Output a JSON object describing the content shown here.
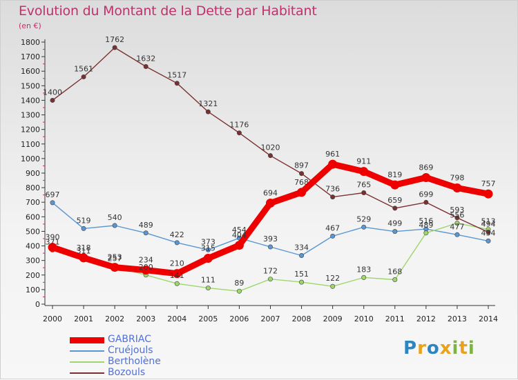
{
  "title": "Evolution du Montant de la Dette par Habitant",
  "unit": "(en €)",
  "logo": {
    "letters": [
      "P",
      "r",
      "o",
      "x",
      "i",
      "t",
      "i"
    ],
    "colors": [
      "#2e86c1",
      "#e8a31c",
      "#2e86c1",
      "#e8a31c",
      "#7cb342",
      "#e8a31c",
      "#7cb342"
    ]
  },
  "chart_data": {
    "type": "line",
    "title": "Evolution du Montant de la Dette par Habitant",
    "ylabel": "(en €)",
    "ylim": [
      0,
      1800
    ],
    "yticks": [
      0,
      100,
      200,
      300,
      400,
      500,
      600,
      700,
      800,
      900,
      1000,
      1100,
      1200,
      1300,
      1400,
      1500,
      1600,
      1700,
      1800
    ],
    "grid": false,
    "legend_position": "bottom-left",
    "x": [
      "2000",
      "2001",
      "2002",
      "2003",
      "2004",
      "2005",
      "2006",
      "2007",
      "2008",
      "2009",
      "2010",
      "2011",
      "2012",
      "2013",
      "2014"
    ],
    "series": [
      {
        "name": "GABRIAC",
        "color": "#ee0000",
        "thick": true,
        "values": [
          390,
          318,
          253,
          234,
          210,
          315,
          404,
          694,
          768,
          961,
          911,
          819,
          869,
          798,
          757
        ]
      },
      {
        "name": "Cruéjouls",
        "color": "#5a96d2",
        "thick": false,
        "values": [
          697,
          519,
          540,
          489,
          422,
          373,
          454,
          393,
          334,
          467,
          529,
          499,
          516,
          477,
          434
        ]
      },
      {
        "name": "Bertholène",
        "color": "#9dd66a",
        "thick": false,
        "values": [
          371,
          311,
          257,
          200,
          141,
          111,
          89,
          172,
          151,
          122,
          183,
          168,
          489,
          556,
          513
        ]
      },
      {
        "name": "Bozouls",
        "color": "#7a3030",
        "thick": false,
        "values": [
          1400,
          1561,
          1762,
          1632,
          1517,
          1321,
          1176,
          1020,
          897,
          736,
          765,
          659,
          699,
          593,
          494
        ]
      }
    ]
  }
}
